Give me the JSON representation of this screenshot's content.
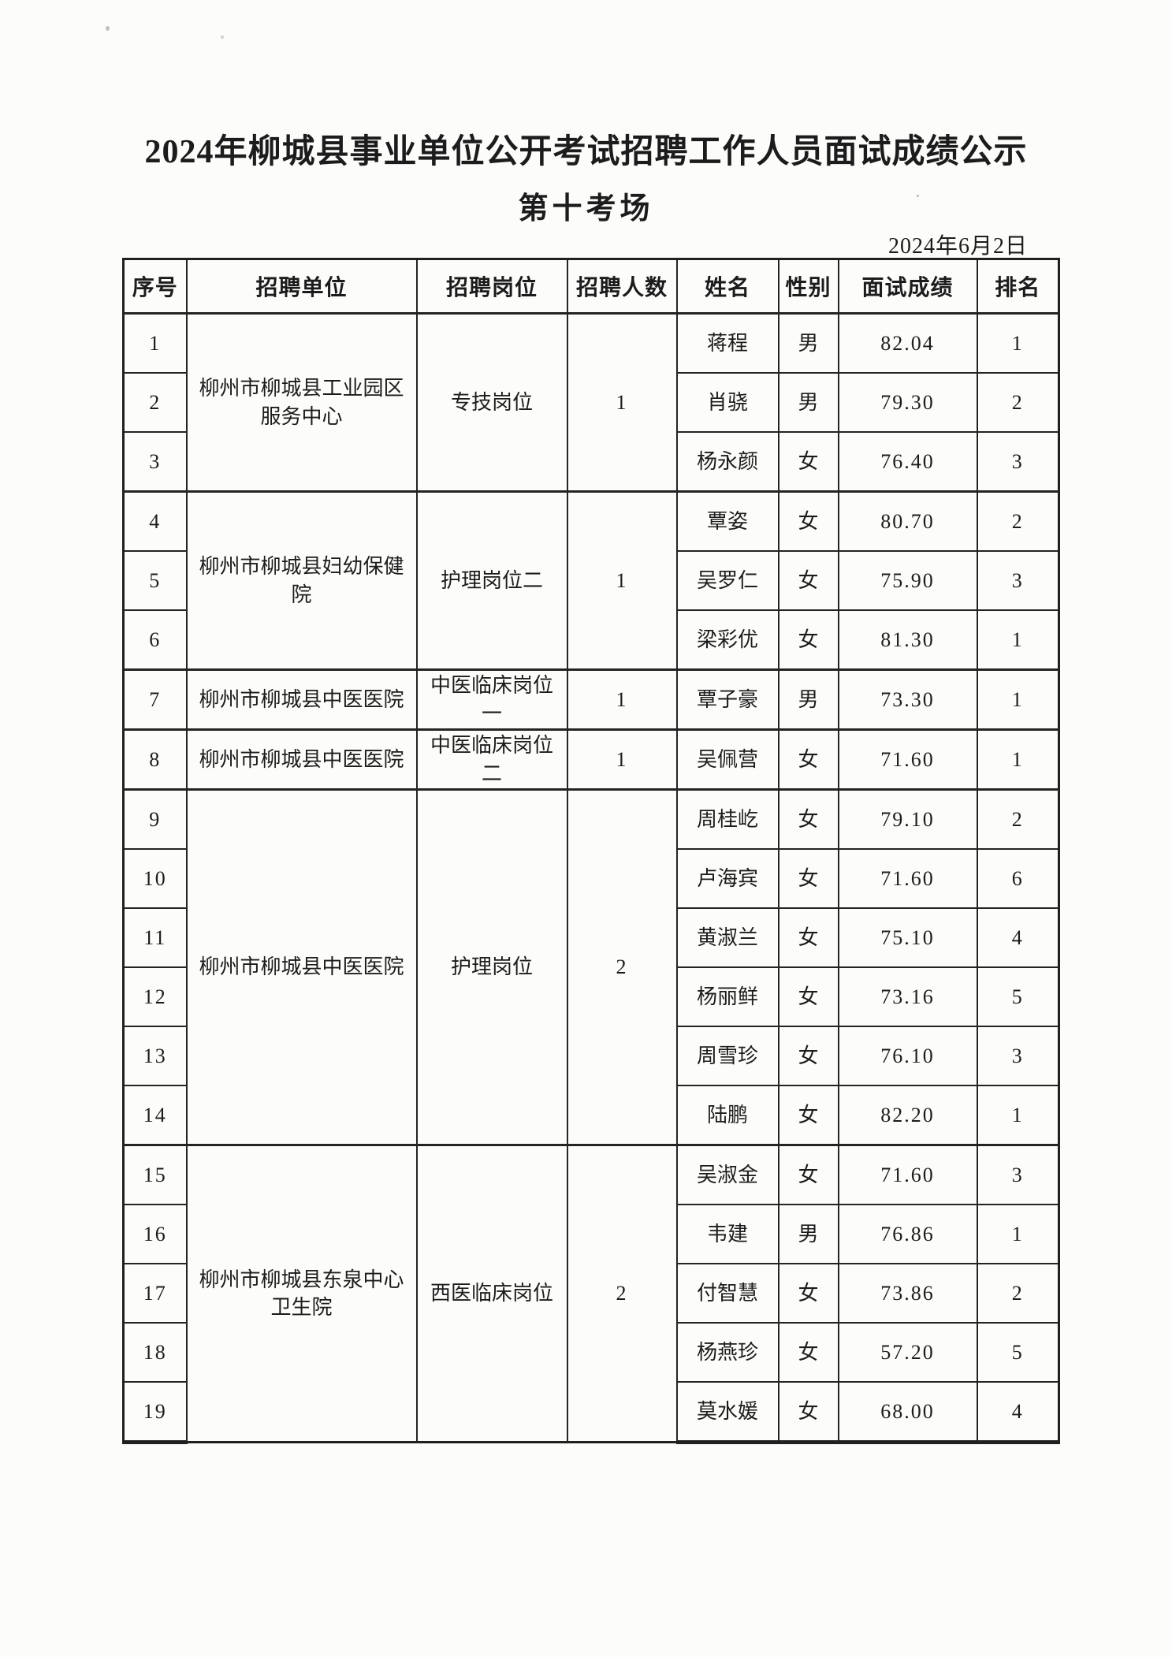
{
  "page": {
    "title": "2024年柳城县事业单位公开考试招聘工作人员面试成绩公示",
    "subtitle": "第十考场",
    "date": "2024年6月2日"
  },
  "table": {
    "headers": [
      "序号",
      "招聘单位",
      "招聘岗位",
      "招聘人数",
      "姓名",
      "性别",
      "面试成绩",
      "排名"
    ],
    "groups": [
      {
        "unit": "柳州市柳城县工业园区服务中心",
        "position": "专技岗位",
        "openings": "1",
        "candidates": [
          {
            "no": "1",
            "name": "蒋程",
            "gender": "男",
            "score": "82.04",
            "rank": "1"
          },
          {
            "no": "2",
            "name": "肖骁",
            "gender": "男",
            "score": "79.30",
            "rank": "2"
          },
          {
            "no": "3",
            "name": "杨永颜",
            "gender": "女",
            "score": "76.40",
            "rank": "3"
          }
        ]
      },
      {
        "unit": "柳州市柳城县妇幼保健院",
        "position": "护理岗位二",
        "openings": "1",
        "candidates": [
          {
            "no": "4",
            "name": "覃姿",
            "gender": "女",
            "score": "80.70",
            "rank": "2"
          },
          {
            "no": "5",
            "name": "吴罗仁",
            "gender": "女",
            "score": "75.90",
            "rank": "3"
          },
          {
            "no": "6",
            "name": "梁彩优",
            "gender": "女",
            "score": "81.30",
            "rank": "1"
          }
        ]
      },
      {
        "unit": "柳州市柳城县中医医院",
        "position": "中医临床岗位一",
        "openings": "1",
        "candidates": [
          {
            "no": "7",
            "name": "覃子豪",
            "gender": "男",
            "score": "73.30",
            "rank": "1"
          }
        ]
      },
      {
        "unit": "柳州市柳城县中医医院",
        "position": "中医临床岗位二",
        "openings": "1",
        "candidates": [
          {
            "no": "8",
            "name": "吴佩营",
            "gender": "女",
            "score": "71.60",
            "rank": "1"
          }
        ]
      },
      {
        "unit": "柳州市柳城县中医医院",
        "position": "护理岗位",
        "openings": "2",
        "candidates": [
          {
            "no": "9",
            "name": "周桂屹",
            "gender": "女",
            "score": "79.10",
            "rank": "2"
          },
          {
            "no": "10",
            "name": "卢海宾",
            "gender": "女",
            "score": "71.60",
            "rank": "6"
          },
          {
            "no": "11",
            "name": "黄淑兰",
            "gender": "女",
            "score": "75.10",
            "rank": "4"
          },
          {
            "no": "12",
            "name": "杨丽鲜",
            "gender": "女",
            "score": "73.16",
            "rank": "5"
          },
          {
            "no": "13",
            "name": "周雪珍",
            "gender": "女",
            "score": "76.10",
            "rank": "3"
          },
          {
            "no": "14",
            "name": "陆鹏",
            "gender": "女",
            "score": "82.20",
            "rank": "1"
          }
        ]
      },
      {
        "unit": "柳州市柳城县东泉中心卫生院",
        "position": "西医临床岗位",
        "openings": "2",
        "candidates": [
          {
            "no": "15",
            "name": "吴淑金",
            "gender": "女",
            "score": "71.60",
            "rank": "3"
          },
          {
            "no": "16",
            "name": "韦建",
            "gender": "男",
            "score": "76.86",
            "rank": "1"
          },
          {
            "no": "17",
            "name": "付智慧",
            "gender": "女",
            "score": "73.86",
            "rank": "2"
          },
          {
            "no": "18",
            "name": "杨燕珍",
            "gender": "女",
            "score": "57.20",
            "rank": "5"
          },
          {
            "no": "19",
            "name": "莫水媛",
            "gender": "女",
            "score": "68.00",
            "rank": "4"
          }
        ]
      }
    ]
  }
}
